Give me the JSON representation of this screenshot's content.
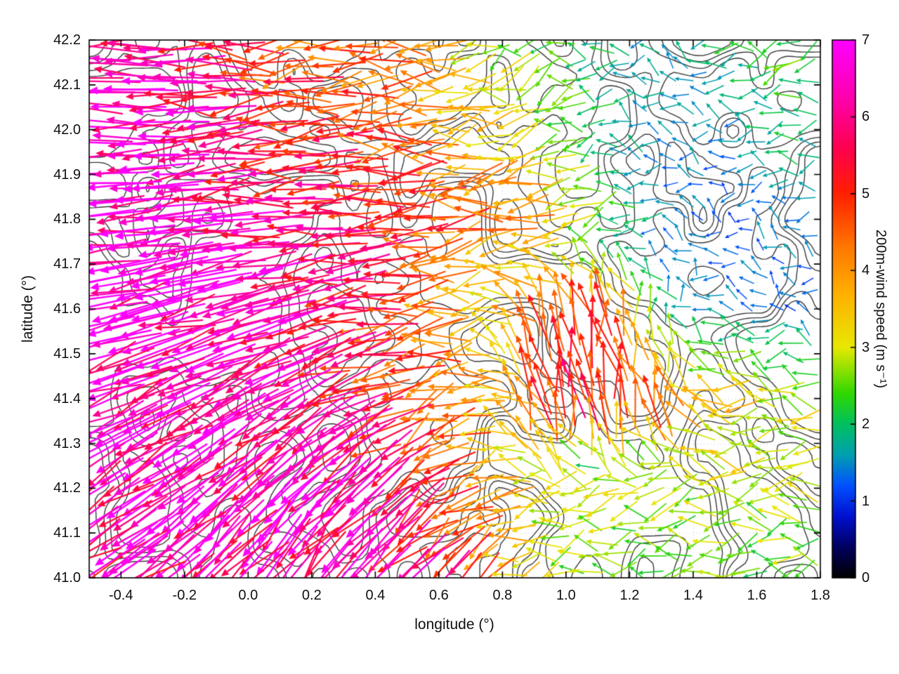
{
  "chart_data": {
    "type": "quiver",
    "title": "",
    "xlabel": "longitude (°)",
    "ylabel": "latitude (°)",
    "xlim": [
      -0.5,
      1.8
    ],
    "ylim": [
      41.0,
      42.2
    ],
    "xticks": [
      -0.4,
      -0.2,
      0.0,
      0.2,
      0.4,
      0.6,
      0.8,
      1.0,
      1.2,
      1.4,
      1.6,
      1.8
    ],
    "xtick_labels": [
      "-0.4",
      "-0.2",
      "0.0",
      "0.2",
      "0.4",
      "0.6",
      "0.8",
      "1.0",
      "1.2",
      "1.4",
      "1.6",
      "1.8"
    ],
    "yticks": [
      41.0,
      41.1,
      41.2,
      41.3,
      41.4,
      41.5,
      41.6,
      41.7,
      41.8,
      41.9,
      42.0,
      42.1,
      42.2
    ],
    "ytick_labels": [
      "41.0",
      "41.1",
      "41.2",
      "41.3",
      "41.4",
      "41.5",
      "41.6",
      "41.7",
      "41.8",
      "41.9",
      "42.0",
      "42.1",
      "42.2"
    ],
    "grid": "dotted",
    "contours": {
      "color": "#3a3a3a"
    },
    "colorbar": {
      "label": "200m-wind speed (m s⁻¹)",
      "min": 0,
      "max": 7,
      "ticks": [
        0,
        1,
        2,
        3,
        4,
        5,
        6,
        7
      ],
      "tick_labels": [
        "0",
        "1",
        "2",
        "3",
        "4",
        "5",
        "6",
        "7"
      ],
      "stops": [
        [
          0.0,
          "#000000"
        ],
        [
          0.4,
          "#000060"
        ],
        [
          0.8,
          "#0010d0"
        ],
        [
          1.2,
          "#0050ff"
        ],
        [
          1.6,
          "#00a0b0"
        ],
        [
          2.0,
          "#00c060"
        ],
        [
          2.4,
          "#30d800"
        ],
        [
          3.0,
          "#e8e800"
        ],
        [
          3.7,
          "#ffb000"
        ],
        [
          4.3,
          "#ff7800"
        ],
        [
          5.0,
          "#ff2000"
        ],
        [
          5.6,
          "#ff0050"
        ],
        [
          6.2,
          "#ff00a8"
        ],
        [
          7.0,
          "#ff00ff"
        ]
      ]
    },
    "wind_grid": {
      "lon": [
        -0.5,
        -0.3,
        -0.1,
        0.1,
        0.3,
        0.5,
        0.7,
        0.9,
        1.1,
        1.3,
        1.5,
        1.7
      ],
      "lat": [
        41.0,
        41.2,
        41.4,
        41.6,
        41.8,
        42.0,
        42.2
      ],
      "speed_ms": [
        [
          6.0,
          6.2,
          6.5,
          6.5,
          6.2,
          6.0,
          5.0,
          3.0,
          2.5,
          2.5,
          2.5,
          2.5
        ],
        [
          6.3,
          6.3,
          6.5,
          6.3,
          6.0,
          5.5,
          4.5,
          3.0,
          2.8,
          2.8,
          2.8,
          2.8
        ],
        [
          6.5,
          6.5,
          6.5,
          6.0,
          5.5,
          5.0,
          4.0,
          5.0,
          5.5,
          4.5,
          3.5,
          3.0
        ],
        [
          6.8,
          6.8,
          6.5,
          6.3,
          5.5,
          4.5,
          3.5,
          4.5,
          5.5,
          2.0,
          1.5,
          1.2
        ],
        [
          7.0,
          7.0,
          6.5,
          6.0,
          5.5,
          5.0,
          4.5,
          4.0,
          2.5,
          1.5,
          1.2,
          1.5
        ],
        [
          7.0,
          6.8,
          6.2,
          5.0,
          4.8,
          4.5,
          3.5,
          3.0,
          2.0,
          1.5,
          1.5,
          2.0
        ],
        [
          6.5,
          6.0,
          5.5,
          4.5,
          4.5,
          4.0,
          3.0,
          2.5,
          2.0,
          1.5,
          2.0,
          2.5
        ]
      ],
      "dir_deg": [
        [
          215,
          220,
          230,
          235,
          235,
          230,
          220,
          190,
          185,
          185,
          185,
          185
        ],
        [
          210,
          215,
          220,
          225,
          220,
          215,
          200,
          180,
          185,
          185,
          185,
          185
        ],
        [
          200,
          205,
          210,
          210,
          205,
          200,
          190,
          110,
          90,
          120,
          170,
          180
        ],
        [
          190,
          195,
          195,
          195,
          190,
          185,
          180,
          120,
          100,
          120,
          150,
          160
        ],
        [
          185,
          185,
          185,
          185,
          185,
          185,
          185,
          190,
          200,
          180,
          160,
          170
        ],
        [
          180,
          180,
          182,
          185,
          180,
          180,
          185,
          195,
          180,
          150,
          170,
          185
        ],
        [
          180,
          180,
          180,
          185,
          180,
          175,
          190,
          200,
          170,
          160,
          180,
          190
        ]
      ]
    }
  }
}
